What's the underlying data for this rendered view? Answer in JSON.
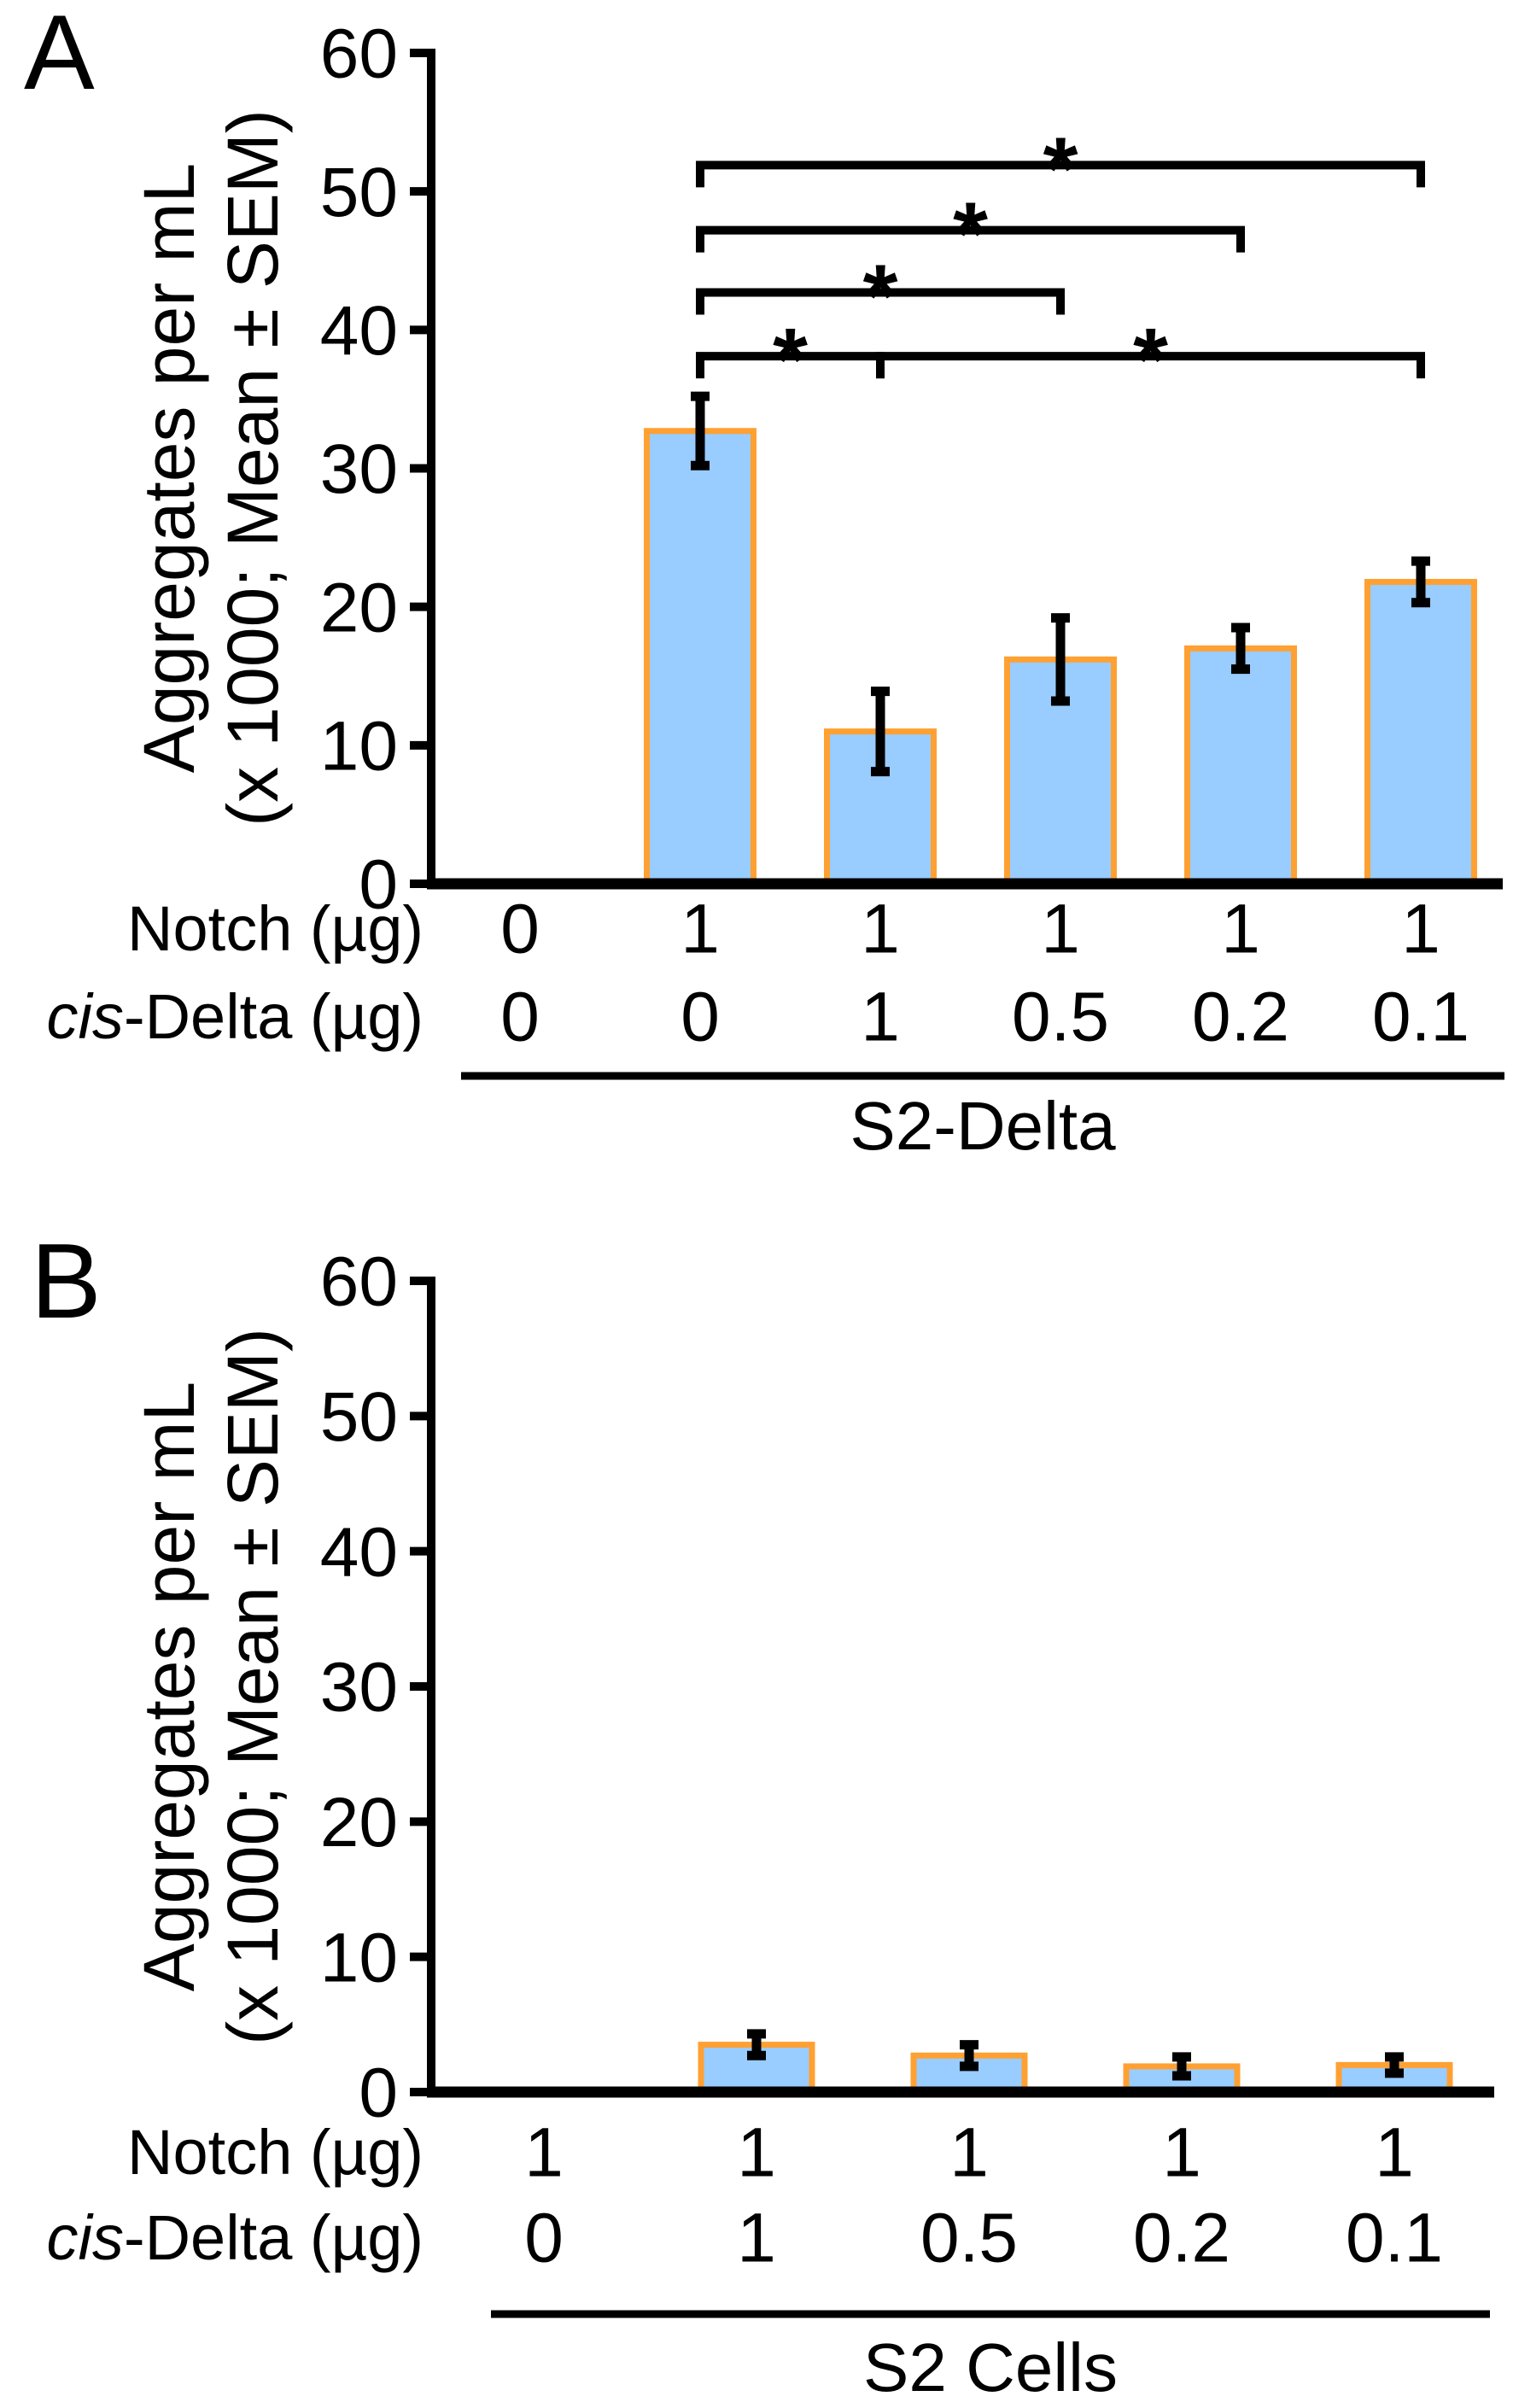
{
  "chart_data": [
    {
      "type": "bar",
      "panel_label": "A",
      "ylabel_lines": [
        "Aggregates per mL",
        "(x 1000; Mean ± SEM)"
      ],
      "ylim": [
        0,
        60
      ],
      "yticks": [
        0,
        10,
        20,
        30,
        40,
        50,
        60
      ],
      "x_rows": [
        {
          "header_italic": "",
          "header": "Notch (µg)",
          "values": [
            "0",
            "1",
            "1",
            "1",
            "1",
            "1"
          ]
        },
        {
          "header_italic": "cis",
          "header": "-Delta (µg)",
          "values": [
            "0",
            "0",
            "1",
            "0.5",
            "0.2",
            "0.1"
          ]
        }
      ],
      "group_label": "S2-Delta",
      "values": [
        0,
        32.7,
        11.0,
        16.2,
        17.0,
        21.8
      ],
      "sem": [
        0,
        2.5,
        2.9,
        3.0,
        1.5,
        1.5
      ],
      "significance_symbol": "*",
      "sig_brackets": [
        {
          "from_bar": 2,
          "to_bar": 6,
          "y_value": 51.9
        },
        {
          "from_bar": 2,
          "to_bar": 5,
          "y_value": 47.2
        },
        {
          "from_bar": 2,
          "to_bar": 4,
          "y_value": 42.7
        },
        {
          "from_bar": 2,
          "to_bar": 3,
          "y_value": 38.1
        },
        {
          "from_bar": 3,
          "to_bar": 6,
          "y_value": 38.1
        }
      ],
      "bar_fill": "#99CCFF",
      "bar_border": "#FFA033",
      "axis_color": "#000000"
    },
    {
      "type": "bar",
      "panel_label": "B",
      "ylabel_lines": [
        "Aggregates per mL",
        "(x 1000; Mean ± SEM)"
      ],
      "ylim": [
        0,
        60
      ],
      "yticks": [
        0,
        10,
        20,
        30,
        40,
        50,
        60
      ],
      "x_rows": [
        {
          "header_italic": "",
          "header": "Notch (µg)",
          "values": [
            "1",
            "1",
            "1",
            "1",
            "1"
          ]
        },
        {
          "header_italic": "cis",
          "header": "-Delta (µg)",
          "values": [
            "0",
            "1",
            "0.5",
            "0.2",
            "0.1"
          ]
        }
      ],
      "group_label": "S2 Cells",
      "values": [
        0,
        3.5,
        2.7,
        1.9,
        2.0
      ],
      "sem": [
        0,
        0.8,
        0.8,
        0.7,
        0.6
      ],
      "significance_symbol": "*",
      "sig_brackets": [],
      "bar_fill": "#99CCFF",
      "bar_border": "#FFA033",
      "axis_color": "#000000"
    }
  ]
}
